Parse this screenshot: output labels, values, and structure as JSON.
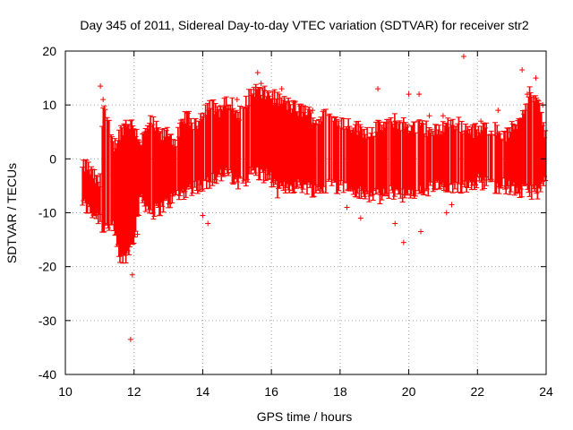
{
  "chart_data": {
    "type": "scatter",
    "title": "Day 345 of 2011, Sidereal Day-to-day VTEC variation (SDTVAR) for receiver str2",
    "xlabel": "GPS time / hours",
    "ylabel": "SDTVAR / TECUs",
    "xlim": [
      10,
      24
    ],
    "ylim": [
      -40,
      20
    ],
    "xticks": [
      10,
      12,
      14,
      16,
      18,
      20,
      22,
      24
    ],
    "yticks": [
      -40,
      -30,
      -20,
      -10,
      0,
      10,
      20
    ],
    "grid": true,
    "marker": "plus",
    "color": "#ff0000",
    "envelope": {
      "x": [
        10.5,
        10.6,
        10.8,
        11.0,
        11.1,
        11.2,
        11.4,
        11.6,
        11.8,
        12.0,
        12.2,
        12.5,
        12.8,
        13.0,
        13.2,
        13.5,
        13.8,
        14.0,
        14.2,
        14.5,
        14.8,
        15.0,
        15.2,
        15.5,
        15.7,
        15.9,
        16.2,
        16.5,
        16.8,
        17.0,
        17.3,
        17.6,
        18.0,
        18.4,
        18.8,
        19.2,
        19.6,
        20.0,
        20.4,
        20.8,
        21.2,
        21.6,
        22.0,
        22.4,
        22.8,
        23.2,
        23.5,
        23.8,
        24.0
      ],
      "upper": [
        -2,
        -1,
        -3,
        -5,
        11,
        8,
        2,
        5,
        7,
        6,
        3,
        7,
        4,
        5,
        3,
        8,
        6,
        9,
        10,
        9,
        11,
        8,
        10,
        13,
        12,
        12,
        11,
        10,
        9,
        9,
        7,
        8,
        7,
        6,
        5,
        6,
        7,
        6,
        6,
        5,
        7,
        6,
        5,
        6,
        4,
        7,
        12,
        10,
        3
      ],
      "lower": [
        -8,
        -9,
        -10,
        -11,
        -13,
        -12,
        -13,
        -19,
        -18,
        -14,
        -7,
        -10,
        -9,
        -8,
        -7,
        -6,
        -5,
        -5,
        -4,
        -3,
        -3,
        -5,
        -4,
        -2,
        -3,
        -3,
        -6,
        -5,
        -5,
        -5,
        -6,
        -5,
        -5,
        -6,
        -7,
        -7,
        -6,
        -7,
        -6,
        -5,
        -6,
        -5,
        -4,
        -5,
        -5,
        -6,
        -6,
        -6,
        -4
      ]
    },
    "outliers": {
      "x": [
        11.02,
        11.1,
        11.15,
        11.9,
        11.95,
        12.1,
        12.35,
        13.5,
        14.0,
        14.15,
        15.0,
        15.6,
        15.7,
        16.45,
        18.6,
        19.1,
        19.85,
        20.0,
        20.3,
        20.35,
        20.6,
        21.1,
        21.25,
        21.6,
        22.6,
        23.3,
        23.45,
        23.7,
        23.9,
        19.6,
        12.45,
        16.3,
        17.2,
        18.2,
        21.0,
        22.1
      ],
      "y": [
        13.5,
        11,
        -12,
        -33.5,
        -21.5,
        -14,
        -5,
        -4,
        -10.5,
        -12,
        11,
        16,
        14,
        6,
        -11,
        13,
        -15.5,
        12,
        12,
        -13.5,
        8,
        -10,
        -8.5,
        19,
        9,
        16.5,
        12,
        15,
        10,
        -12,
        6,
        13,
        9,
        -9,
        8,
        7
      ]
    }
  }
}
